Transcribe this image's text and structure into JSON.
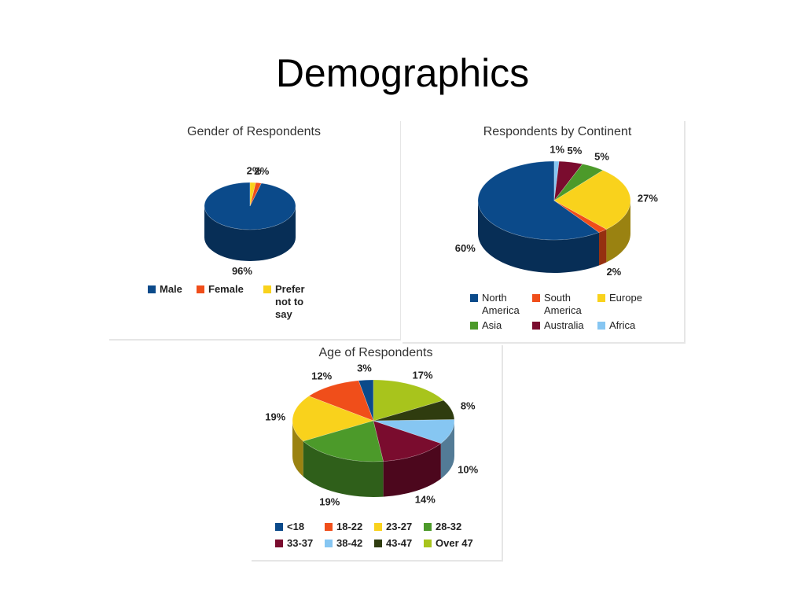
{
  "title": "Demographics",
  "chart_data": [
    {
      "type": "pie",
      "title": "Gender of Respondents",
      "categories": [
        "Male",
        "Female",
        "Prefer not to say"
      ],
      "values": [
        96,
        2,
        2
      ],
      "value_labels": [
        "96%",
        "2%",
        "2%"
      ],
      "colors": [
        "#0b4a8a",
        "#f04e1a",
        "#f9d21c"
      ]
    },
    {
      "type": "pie",
      "title": "Respondents by Continent",
      "categories": [
        "North America",
        "South America",
        "Europe",
        "Asia",
        "Australia",
        "Africa"
      ],
      "values": [
        60,
        2,
        27,
        5,
        5,
        1
      ],
      "value_labels": [
        "60%",
        "2%",
        "27%",
        "5%",
        "5%",
        "1%"
      ],
      "colors": [
        "#0b4a8a",
        "#f04e1a",
        "#f9d21c",
        "#4c9a2a",
        "#7a0c2e",
        "#86c6f2"
      ]
    },
    {
      "type": "pie",
      "title": "Age of Respondents",
      "categories": [
        "<18",
        "18-22",
        "23-27",
        "28-32",
        "33-37",
        "38-42",
        "43-47",
        "Over 47"
      ],
      "values": [
        3,
        12,
        19,
        19,
        14,
        10,
        8,
        17
      ],
      "value_labels": [
        "3%",
        "12%",
        "19%",
        "19%",
        "14%",
        "10%",
        "8%",
        "17%"
      ],
      "colors": [
        "#0b4a8a",
        "#f04e1a",
        "#f9d21c",
        "#4c9a2a",
        "#7a0c2e",
        "#86c6f2",
        "#2f3c0f",
        "#a8c41c"
      ]
    }
  ]
}
